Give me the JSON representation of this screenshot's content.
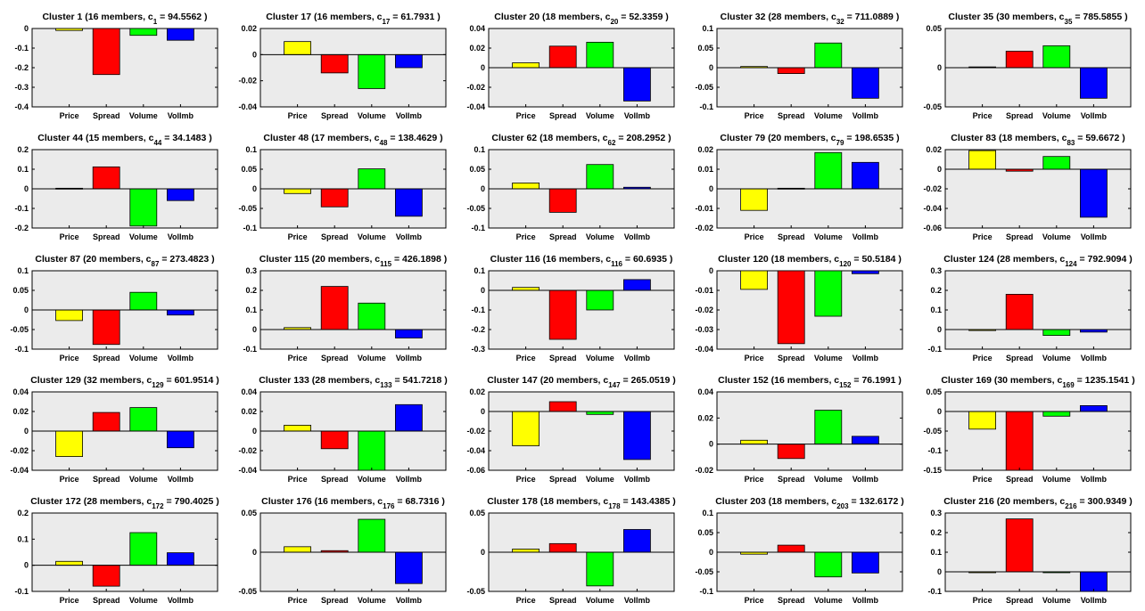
{
  "colors": {
    "Price": "#ffff00",
    "Spread": "#ff0000",
    "Volume": "#00ff00",
    "VolImb": "#0000ff",
    "plot_background": "#ebebeb"
  },
  "chart_data": [
    {
      "type": "bar",
      "title": {
        "prefix": "Cluster 1 (16 members, c",
        "sub": "1",
        "suffix": " = 94.5562 )"
      },
      "categories": [
        "Price",
        "Spread",
        "Volume",
        "VolImb"
      ],
      "values": [
        -0.01,
        -0.235,
        -0.035,
        -0.06
      ],
      "ylim": [
        -0.4,
        0
      ],
      "yticks": [
        "-0.4",
        "-0.3",
        "-0.2",
        "-0.1",
        "0"
      ]
    },
    {
      "type": "bar",
      "title": {
        "prefix": "Cluster 17 (16 members, c",
        "sub": "17",
        "suffix": " = 61.7931 )"
      },
      "categories": [
        "Price",
        "Spread",
        "Volume",
        "VolImb"
      ],
      "values": [
        0.01,
        -0.014,
        -0.026,
        -0.01
      ],
      "ylim": [
        -0.04,
        0.02
      ],
      "yticks": [
        "-0.04",
        "-0.02",
        "0",
        "0.02"
      ]
    },
    {
      "type": "bar",
      "title": {
        "prefix": "Cluster 20 (18 members, c",
        "sub": "20",
        "suffix": " = 52.3359 )"
      },
      "categories": [
        "Price",
        "Spread",
        "Volume",
        "VolImb"
      ],
      "values": [
        0.005,
        0.022,
        0.026,
        -0.034
      ],
      "ylim": [
        -0.04,
        0.04
      ],
      "yticks": [
        "-0.04",
        "-0.02",
        "0",
        "0.02",
        "0.04"
      ]
    },
    {
      "type": "bar",
      "title": {
        "prefix": "Cluster 32 (28 members, c",
        "sub": "32",
        "suffix": " = 711.0889 )"
      },
      "categories": [
        "Price",
        "Spread",
        "Volume",
        "VolImb"
      ],
      "values": [
        0.003,
        -0.015,
        0.063,
        -0.078
      ],
      "ylim": [
        -0.1,
        0.1
      ],
      "yticks": [
        "-0.1",
        "-0.05",
        "0",
        "0.05",
        "0.1"
      ]
    },
    {
      "type": "bar",
      "title": {
        "prefix": "Cluster 35 (30 members, c",
        "sub": "35",
        "suffix": " = 785.5855 )"
      },
      "categories": [
        "Price",
        "Spread",
        "Volume",
        "VolImb"
      ],
      "values": [
        0.001,
        0.021,
        0.028,
        -0.039
      ],
      "ylim": [
        -0.05,
        0.05
      ],
      "yticks": [
        "-0.05",
        "0",
        "0.05"
      ]
    },
    {
      "type": "bar",
      "title": {
        "prefix": "Cluster 44 (15 members, c",
        "sub": "44",
        "suffix": " = 34.1483 )"
      },
      "categories": [
        "Price",
        "Spread",
        "Volume",
        "VolImb"
      ],
      "values": [
        0.003,
        0.112,
        -0.19,
        -0.06
      ],
      "ylim": [
        -0.2,
        0.2
      ],
      "yticks": [
        "-0.2",
        "-0.1",
        "0",
        "0.1",
        "0.2"
      ]
    },
    {
      "type": "bar",
      "title": {
        "prefix": "Cluster 48 (17 members, c",
        "sub": "48",
        "suffix": " = 138.4629 )"
      },
      "categories": [
        "Price",
        "Spread",
        "Volume",
        "VolImb"
      ],
      "values": [
        -0.012,
        -0.046,
        0.051,
        -0.07
      ],
      "ylim": [
        -0.1,
        0.1
      ],
      "yticks": [
        "-0.1",
        "-0.05",
        "0",
        "0.05",
        "0.1"
      ]
    },
    {
      "type": "bar",
      "title": {
        "prefix": "Cluster 62 (18 members, c",
        "sub": "62",
        "suffix": " = 208.2952 )"
      },
      "categories": [
        "Price",
        "Spread",
        "Volume",
        "VolImb"
      ],
      "values": [
        0.015,
        -0.06,
        0.062,
        0.004
      ],
      "ylim": [
        -0.1,
        0.1
      ],
      "yticks": [
        "-0.1",
        "-0.05",
        "0",
        "0.05",
        "0.1"
      ]
    },
    {
      "type": "bar",
      "title": {
        "prefix": "Cluster 79 (20 members, c",
        "sub": "79",
        "suffix": " = 198.6535 )"
      },
      "categories": [
        "Price",
        "Spread",
        "Volume",
        "VolImb"
      ],
      "values": [
        -0.011,
        0.0003,
        0.0185,
        0.0135
      ],
      "ylim": [
        -0.02,
        0.02
      ],
      "yticks": [
        "-0.02",
        "-0.01",
        "0",
        "0.01",
        "0.02"
      ]
    },
    {
      "type": "bar",
      "title": {
        "prefix": "Cluster 83 (18 members, c",
        "sub": "83",
        "suffix": " = 59.6672 )"
      },
      "categories": [
        "Price",
        "Spread",
        "Volume",
        "VolImb"
      ],
      "values": [
        0.019,
        -0.002,
        0.013,
        -0.049
      ],
      "ylim": [
        -0.06,
        0.02
      ],
      "yticks": [
        "-0.06",
        "-0.04",
        "-0.02",
        "0",
        "0.02"
      ]
    },
    {
      "type": "bar",
      "title": {
        "prefix": "Cluster 87 (20 members, c",
        "sub": "87",
        "suffix": " = 273.4823 )"
      },
      "categories": [
        "Price",
        "Spread",
        "Volume",
        "VolImb"
      ],
      "values": [
        -0.027,
        -0.088,
        0.045,
        -0.013
      ],
      "ylim": [
        -0.1,
        0.1
      ],
      "yticks": [
        "-0.1",
        "-0.05",
        "0",
        "0.05",
        "0.1"
      ]
    },
    {
      "type": "bar",
      "title": {
        "prefix": "Cluster 115 (20 members, c",
        "sub": "115",
        "suffix": " = 426.1898 )"
      },
      "categories": [
        "Price",
        "Spread",
        "Volume",
        "VolImb"
      ],
      "values": [
        0.01,
        0.22,
        0.135,
        -0.043
      ],
      "ylim": [
        -0.1,
        0.3
      ],
      "yticks": [
        "-0.1",
        "0",
        "0.1",
        "0.2",
        "0.3"
      ]
    },
    {
      "type": "bar",
      "title": {
        "prefix": "Cluster 116 (16 members, c",
        "sub": "116",
        "suffix": " = 60.6935 )"
      },
      "categories": [
        "Price",
        "Spread",
        "Volume",
        "VolImb"
      ],
      "values": [
        0.015,
        -0.25,
        -0.1,
        0.055
      ],
      "ylim": [
        -0.3,
        0.1
      ],
      "yticks": [
        "-0.3",
        "-0.2",
        "-0.1",
        "0",
        "0.1"
      ]
    },
    {
      "type": "bar",
      "title": {
        "prefix": "Cluster 120 (18 members, c",
        "sub": "120",
        "suffix": " = 50.5184 )"
      },
      "categories": [
        "Price",
        "Spread",
        "Volume",
        "VolImb"
      ],
      "values": [
        -0.0095,
        -0.0372,
        -0.0232,
        -0.0015
      ],
      "ylim": [
        -0.04,
        0
      ],
      "yticks": [
        "-0.04",
        "-0.03",
        "-0.02",
        "-0.01",
        "0"
      ]
    },
    {
      "type": "bar",
      "title": {
        "prefix": "Cluster 124 (28 members, c",
        "sub": "124",
        "suffix": " = 792.9094 )"
      },
      "categories": [
        "Price",
        "Spread",
        "Volume",
        "VolImb"
      ],
      "values": [
        -0.005,
        0.18,
        -0.03,
        -0.013
      ],
      "ylim": [
        -0.1,
        0.3
      ],
      "yticks": [
        "-0.1",
        "0",
        "0.1",
        "0.2",
        "0.3"
      ]
    },
    {
      "type": "bar",
      "title": {
        "prefix": "Cluster 129 (32 members, c",
        "sub": "129",
        "suffix": " = 601.9514 )"
      },
      "categories": [
        "Price",
        "Spread",
        "Volume",
        "VolImb"
      ],
      "values": [
        -0.026,
        0.019,
        0.024,
        -0.017
      ],
      "ylim": [
        -0.04,
        0.04
      ],
      "yticks": [
        "-0.04",
        "-0.02",
        "0",
        "0.02",
        "0.04"
      ]
    },
    {
      "type": "bar",
      "title": {
        "prefix": "Cluster 133 (28 members, c",
        "sub": "133",
        "suffix": " = 541.7218 )"
      },
      "categories": [
        "Price",
        "Spread",
        "Volume",
        "VolImb"
      ],
      "values": [
        0.006,
        -0.018,
        -0.04,
        0.027
      ],
      "ylim": [
        -0.04,
        0.04
      ],
      "yticks": [
        "-0.04",
        "-0.02",
        "0",
        "0.02",
        "0.04"
      ]
    },
    {
      "type": "bar",
      "title": {
        "prefix": "Cluster 147 (20 members, c",
        "sub": "147",
        "suffix": " = 265.0519 )"
      },
      "categories": [
        "Price",
        "Spread",
        "Volume",
        "VolImb"
      ],
      "values": [
        -0.035,
        0.01,
        -0.003,
        -0.049
      ],
      "ylim": [
        -0.06,
        0.02
      ],
      "yticks": [
        "-0.06",
        "-0.04",
        "-0.02",
        "0",
        "0.02"
      ]
    },
    {
      "type": "bar",
      "title": {
        "prefix": "Cluster 152 (16 members, c",
        "sub": "152",
        "suffix": " = 76.1991 )"
      },
      "categories": [
        "Price",
        "Spread",
        "Volume",
        "VolImb"
      ],
      "values": [
        0.003,
        -0.011,
        0.026,
        0.006
      ],
      "ylim": [
        -0.02,
        0.04
      ],
      "yticks": [
        "-0.02",
        "0",
        "0.02",
        "0.04"
      ]
    },
    {
      "type": "bar",
      "title": {
        "prefix": "Cluster 169 (30 members, c",
        "sub": "169",
        "suffix": " = 1235.1541 )"
      },
      "categories": [
        "Price",
        "Spread",
        "Volume",
        "VolImb"
      ],
      "values": [
        -0.045,
        -0.15,
        -0.012,
        0.015
      ],
      "ylim": [
        -0.15,
        0.05
      ],
      "yticks": [
        "-0.15",
        "-0.1",
        "-0.05",
        "0",
        "0.05"
      ]
    },
    {
      "type": "bar",
      "title": {
        "prefix": "Cluster 172 (28 members, c",
        "sub": "172",
        "suffix": " = 790.4025 )"
      },
      "categories": [
        "Price",
        "Spread",
        "Volume",
        "VolImb"
      ],
      "values": [
        0.015,
        -0.08,
        0.125,
        0.048
      ],
      "ylim": [
        -0.1,
        0.2
      ],
      "yticks": [
        "-0.1",
        "0",
        "0.1",
        "0.2"
      ]
    },
    {
      "type": "bar",
      "title": {
        "prefix": "Cluster 176 (16 members, c",
        "sub": "176",
        "suffix": " = 68.7316 )"
      },
      "categories": [
        "Price",
        "Spread",
        "Volume",
        "VolImb"
      ],
      "values": [
        0.007,
        0.002,
        0.042,
        -0.04
      ],
      "ylim": [
        -0.05,
        0.05
      ],
      "yticks": [
        "-0.05",
        "0",
        "0.05"
      ]
    },
    {
      "type": "bar",
      "title": {
        "prefix": "Cluster 178 (18 members, c",
        "sub": "178",
        "suffix": " = 143.4385 )"
      },
      "categories": [
        "Price",
        "Spread",
        "Volume",
        "VolImb"
      ],
      "values": [
        0.004,
        0.011,
        -0.043,
        0.029
      ],
      "ylim": [
        -0.05,
        0.05
      ],
      "yticks": [
        "-0.05",
        "0",
        "0.05"
      ]
    },
    {
      "type": "bar",
      "title": {
        "prefix": "Cluster 203 (18 members, c",
        "sub": "203",
        "suffix": " = 132.6172 )"
      },
      "categories": [
        "Price",
        "Spread",
        "Volume",
        "VolImb"
      ],
      "values": [
        -0.005,
        0.018,
        -0.063,
        -0.053
      ],
      "ylim": [
        -0.1,
        0.1
      ],
      "yticks": [
        "-0.1",
        "-0.05",
        "0",
        "0.05",
        "0.1"
      ]
    },
    {
      "type": "bar",
      "title": {
        "prefix": "Cluster 216 (20 members, c",
        "sub": "216",
        "suffix": " = 300.9349 )"
      },
      "categories": [
        "Price",
        "Spread",
        "Volume",
        "VolImb"
      ],
      "values": [
        -0.003,
        0.27,
        -0.003,
        -0.1
      ],
      "ylim": [
        -0.1,
        0.3
      ],
      "yticks": [
        "-0.1",
        "0",
        "0.1",
        "0.2",
        "0.3"
      ]
    }
  ]
}
